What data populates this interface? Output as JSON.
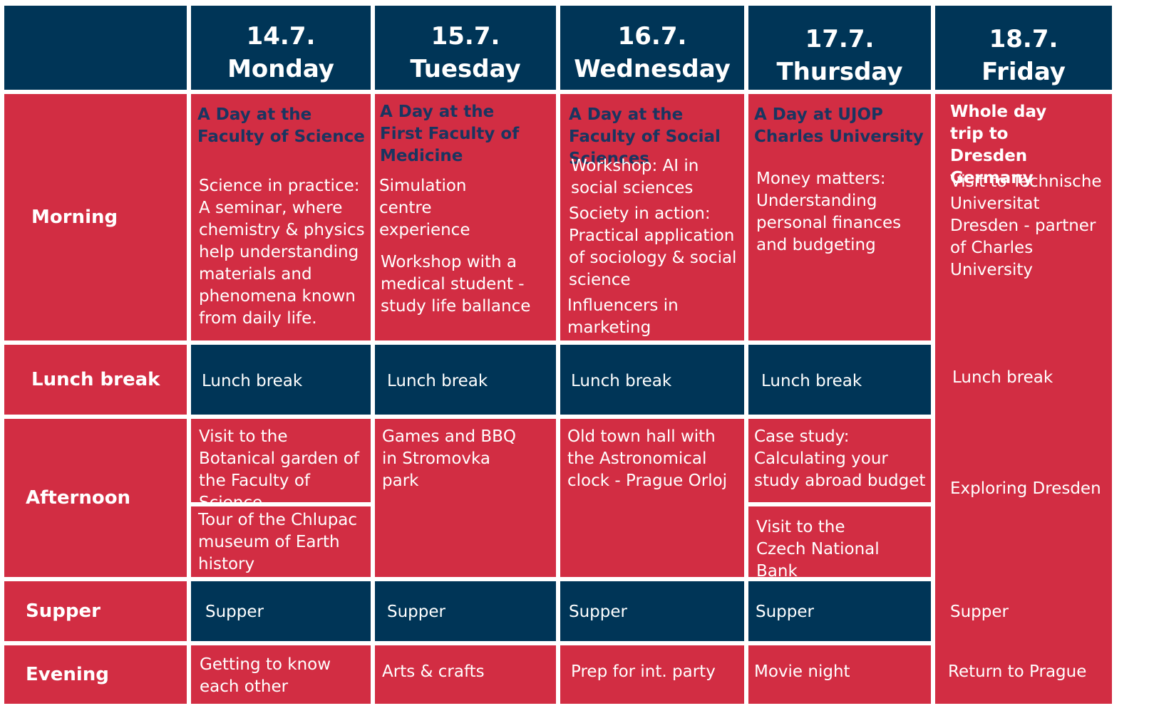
{
  "days": [
    {
      "date": "14.7.",
      "name": "Monday"
    },
    {
      "date": "15.7.",
      "name": "Tuesday"
    },
    {
      "date": "16.7.",
      "name": "Wednesday"
    },
    {
      "date": "17.7.",
      "name": "Thursday"
    },
    {
      "date": "18.7.",
      "name": "Friday"
    }
  ],
  "rows": {
    "morning": "Morning",
    "lunch": "Lunch break",
    "afternoon": "Afternoon",
    "supper": "Supper",
    "evening": "Evening"
  },
  "monday": {
    "morning_title": "A Day at the Faculty of Science",
    "morning_text": "Science in practice: A seminar, where chemistry & physics help understanding materials and phenomena known from daily life.",
    "lunch": "Lunch break",
    "afternoon_1": "Visit to the Botanical garden of the Faculty of Science",
    "afternoon_2": "Tour of the Chlupac museum of Earth history",
    "supper": "Supper",
    "evening": "Getting to know each other"
  },
  "tuesday": {
    "morning_title": "A Day at the First Faculty of Medicine",
    "morning_text_1": "Simulation centre experience",
    "morning_text_2": "Workshop with a medical student - study life ballance",
    "lunch": "Lunch break",
    "afternoon": "Games and BBQ in Stromovka park",
    "supper": "Supper",
    "evening": "Arts & crafts"
  },
  "wednesday": {
    "morning_title": "A Day at the Faculty of Social Sciences",
    "morning_text_1": "Workshop: AI in social sciences",
    "morning_text_2": "Society in action: Practical application of sociology & social science",
    "morning_text_3": "Influencers in marketing",
    "lunch": "Lunch break",
    "afternoon": "Old town hall with the Astronomical clock - Prague Orloj",
    "supper": "Supper",
    "evening": "Prep for int. party"
  },
  "thursday": {
    "morning_title": "A Day at UJOP Charles University",
    "morning_text": "Money matters: Understanding personal finances and budgeting",
    "lunch": "Lunch break",
    "afternoon_1": "Case study: Calculating your study abroad budget",
    "afternoon_2": "Visit to the Czech National Bank",
    "supper": "Supper",
    "evening": "Movie night"
  },
  "friday": {
    "morning_title": "Whole day trip to Dresden Germany",
    "morning_text": "Visit to Technische Universitat Dresden - partner of Charles University",
    "lunch": "Lunch break",
    "afternoon": "Exploring Dresden",
    "supper": "Supper",
    "evening": "Return to Prague"
  },
  "colors": {
    "navy": "#003557",
    "red": "#d22d43",
    "title_navy": "#1a3560"
  }
}
